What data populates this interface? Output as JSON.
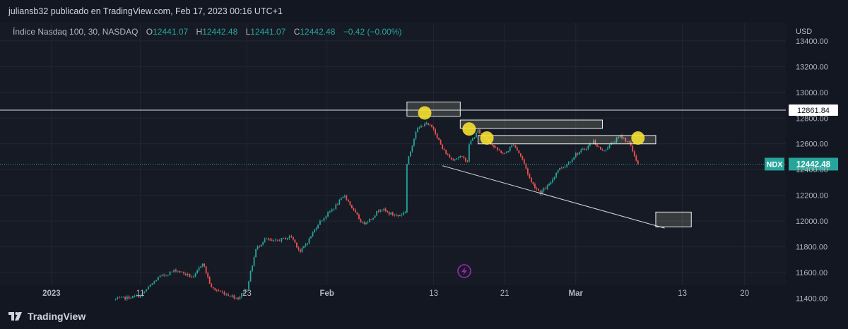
{
  "publisher": "juliansb32 publicado en TradingView.com, Feb 17, 2023 00:16 UTC+1",
  "legend": {
    "symbol": "Índice Nasdaq 100, 30, NASDAQ",
    "o_label": "O",
    "o": "12441.07",
    "h_label": "H",
    "h": "12442.48",
    "l_label": "L",
    "l": "12441.07",
    "c_label": "C",
    "c": "12442.48",
    "change": "−0.42 (−0.00%)"
  },
  "footer": {
    "brand": "TradingView"
  },
  "colors": {
    "bg": "#161a25",
    "up": "#26a69a",
    "down": "#ef5350",
    "yellow": "#f5e030",
    "axis_text": "#b2b5be"
  },
  "chart_data": {
    "type": "candlestick",
    "currency": "USD",
    "ylim": [
      11370,
      13520
    ],
    "y_ticks": [
      11400,
      11600,
      11800,
      12000,
      12200,
      12400,
      12600,
      12800,
      13000,
      13200,
      13400
    ],
    "y_tick_labels": [
      "11400.00",
      "11600.00",
      "11800.00",
      "12000.00",
      "12200.00",
      "12400.00",
      "12600.00",
      "12800.00",
      "13000.00",
      "13200.00",
      "13400.00"
    ],
    "x_range": [
      "2022-12-27",
      "2023-03-24"
    ],
    "x_ticks": [
      {
        "date": "2023-01-01",
        "label": "2023"
      },
      {
        "date": "2023-01-11",
        "label": "11"
      },
      {
        "date": "2023-01-23",
        "label": "23"
      },
      {
        "date": "2023-02-01",
        "label": "Feb"
      },
      {
        "date": "2023-02-13",
        "label": "13"
      },
      {
        "date": "2023-02-21",
        "label": "21"
      },
      {
        "date": "2023-03-01",
        "label": "Mar"
      },
      {
        "date": "2023-03-13",
        "label": "13"
      },
      {
        "date": "2023-03-20",
        "label": "20"
      }
    ],
    "price_path": [
      {
        "date": "2023-01-08",
        "price": 11390
      },
      {
        "date": "2023-01-11",
        "price": 11420
      },
      {
        "date": "2023-01-13",
        "price": 11560
      },
      {
        "date": "2023-01-15",
        "price": 11620
      },
      {
        "date": "2023-01-17",
        "price": 11560
      },
      {
        "date": "2023-01-18",
        "price": 11680
      },
      {
        "date": "2023-01-19",
        "price": 11480
      },
      {
        "date": "2023-01-20",
        "price": 11450
      },
      {
        "date": "2023-01-22",
        "price": 11400
      },
      {
        "date": "2023-01-23",
        "price": 11480
      },
      {
        "date": "2023-01-24",
        "price": 11780
      },
      {
        "date": "2023-01-25",
        "price": 11860
      },
      {
        "date": "2023-01-26",
        "price": 11840
      },
      {
        "date": "2023-01-28",
        "price": 11880
      },
      {
        "date": "2023-01-29",
        "price": 11760
      },
      {
        "date": "2023-01-30",
        "price": 11860
      },
      {
        "date": "2023-01-31",
        "price": 11980
      },
      {
        "date": "2023-02-02",
        "price": 12120
      },
      {
        "date": "2023-02-03",
        "price": 12200
      },
      {
        "date": "2023-02-04",
        "price": 12080
      },
      {
        "date": "2023-02-05",
        "price": 11980
      },
      {
        "date": "2023-02-06",
        "price": 12020
      },
      {
        "date": "2023-02-07",
        "price": 12100
      },
      {
        "date": "2023-02-08",
        "price": 12060
      },
      {
        "date": "2023-02-09",
        "price": 12040
      },
      {
        "date": "2023-02-10",
        "price": 12080
      },
      {
        "date": "2023-02-10",
        "price": 12440
      },
      {
        "date": "2023-02-11",
        "price": 12700
      },
      {
        "date": "2023-02-12",
        "price": 12760
      },
      {
        "date": "2023-02-13",
        "price": 12720
      },
      {
        "date": "2023-02-14",
        "price": 12560
      },
      {
        "date": "2023-02-15",
        "price": 12480
      },
      {
        "date": "2023-02-16",
        "price": 12500
      },
      {
        "date": "2023-02-17",
        "price": 12460
      },
      {
        "date": "2023-02-17",
        "price": 12600
      },
      {
        "date": "2023-02-18",
        "price": 12700
      },
      {
        "date": "2023-02-19",
        "price": 12640
      },
      {
        "date": "2023-02-20",
        "price": 12560
      },
      {
        "date": "2023-02-21",
        "price": 12520
      },
      {
        "date": "2023-02-22",
        "price": 12600
      },
      {
        "date": "2023-02-23",
        "price": 12480
      },
      {
        "date": "2023-02-24",
        "price": 12300
      },
      {
        "date": "2023-02-25",
        "price": 12220
      },
      {
        "date": "2023-02-26",
        "price": 12280
      },
      {
        "date": "2023-02-27",
        "price": 12400
      },
      {
        "date": "2023-02-28",
        "price": 12440
      },
      {
        "date": "2023-03-01",
        "price": 12520
      },
      {
        "date": "2023-03-02",
        "price": 12560
      },
      {
        "date": "2023-03-03",
        "price": 12620
      },
      {
        "date": "2023-03-04",
        "price": 12540
      },
      {
        "date": "2023-03-05",
        "price": 12600
      },
      {
        "date": "2023-03-06",
        "price": 12660
      },
      {
        "date": "2023-03-07",
        "price": 12610
      },
      {
        "date": "2023-03-08",
        "price": 12442.48
      }
    ],
    "horizontal_line": {
      "price": 12861.84,
      "label": "12861.84"
    },
    "last_price": {
      "price": 12442.48,
      "symbol": "NDX",
      "label": "12442.48"
    },
    "rectangles": [
      {
        "x0": "2023-02-10",
        "x1": "2023-02-16",
        "y_low": 12815,
        "y_high": 12925
      },
      {
        "x0": "2023-02-16",
        "x1": "2023-03-04",
        "y_low": 12720,
        "y_high": 12785
      },
      {
        "x0": "2023-02-18",
        "x1": "2023-03-10",
        "y_low": 12600,
        "y_high": 12665
      },
      {
        "x0": "2023-03-10",
        "x1": "2023-03-14",
        "y_low": 11955,
        "y_high": 12070
      }
    ],
    "trend_line": [
      {
        "date": "2023-02-14",
        "price": 12430
      },
      {
        "date": "2023-03-11",
        "price": 11945
      }
    ],
    "yellow_markers": [
      {
        "date": "2023-02-12",
        "price": 12840
      },
      {
        "date": "2023-02-17",
        "price": 12715
      },
      {
        "date": "2023-02-19",
        "price": 12645
      },
      {
        "date": "2023-03-08",
        "price": 12645
      }
    ]
  }
}
